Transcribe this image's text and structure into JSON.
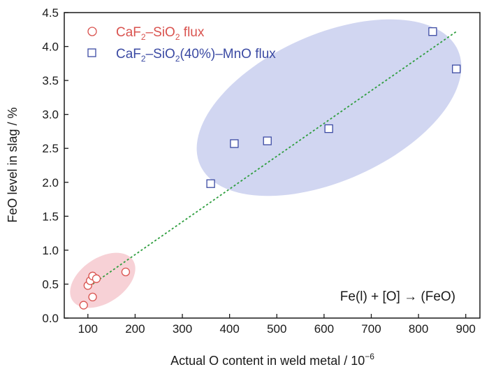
{
  "chart_data": {
    "type": "scatter",
    "xlabel_text": "Actual O content in weld metal / 10",
    "xlabel_sup": "−6",
    "ylabel": "FeO level in slag / %",
    "xlim": [
      50,
      930
    ],
    "ylim": [
      0,
      4.5
    ],
    "xticks": [
      "100",
      "200",
      "300",
      "400",
      "500",
      "600",
      "700",
      "800",
      "900"
    ],
    "yticks": [
      "0.0",
      "0.5",
      "1.0",
      "1.5",
      "2.0",
      "2.5",
      "3.0",
      "3.5",
      "4.0",
      "4.5"
    ],
    "grid": false,
    "legend_position": "top-left",
    "series": [
      {
        "legend": {
          "p1": "CaF",
          "s1": "2",
          "p2": "–SiO",
          "s2": "2",
          "p3": " flux"
        },
        "marker": "circle",
        "color": "#d9534f",
        "x": [
          91,
          100,
          105,
          110,
          110,
          118,
          180
        ],
        "y": [
          0.19,
          0.48,
          0.55,
          0.31,
          0.62,
          0.58,
          0.68
        ]
      },
      {
        "legend": {
          "p1": "CaF",
          "s1": "2",
          "p2": "–SiO",
          "s2": "2",
          "p3": "(40%)–MnO flux"
        },
        "marker": "square",
        "color": "#3b4aa3",
        "x": [
          360,
          410,
          480,
          610,
          830,
          880
        ],
        "y": [
          1.98,
          2.57,
          2.61,
          2.79,
          4.22,
          3.67
        ]
      }
    ],
    "trendline": {
      "style": "dotted",
      "color": "#2e9e3e",
      "x": [
        110,
        880
      ],
      "y": [
        0.5,
        4.22
      ]
    },
    "annotation": "Fe(l) + [O] → (FeO)",
    "colors": {
      "red_region": "#f6c9cf",
      "blue_region": "#c9cfee",
      "marker_face": "#ffffff"
    }
  }
}
